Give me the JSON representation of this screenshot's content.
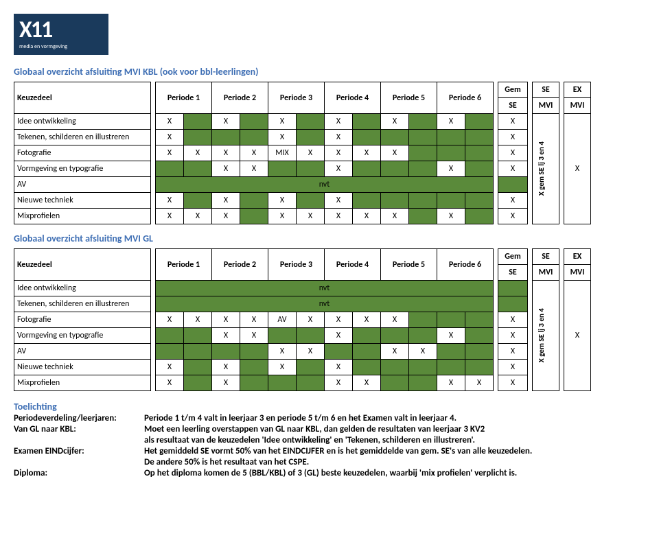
{
  "logo": {
    "main": "X11",
    "sub": "media en vormgeving"
  },
  "title1": "Globaal overzicht afsluiting MVI KBL (ook voor bbl-leerlingen)",
  "title2": "Globaal overzicht afsluiting MVI GL",
  "headers": {
    "keuzedeel": "Keuzedeel",
    "periods": [
      "Periode 1",
      "Periode 2",
      "Periode 3",
      "Periode 4",
      "Periode 5",
      "Periode 6"
    ],
    "gem_top": "Gem",
    "gem_bot": "SE",
    "se_top": "SE",
    "se_bot": "MVI",
    "ex_top": "EX",
    "ex_bot": "MVI",
    "vert": "X gem SE lj 3 en 4",
    "bigX": "X"
  },
  "nvt": "nvt",
  "table1": {
    "rows": [
      {
        "label": "Idee ontwikkeling",
        "cells": [
          "X",
          "",
          "X",
          "",
          "X",
          "",
          "X",
          "",
          "X",
          "",
          "X",
          "",
          "X"
        ]
      },
      {
        "label": "Tekenen, schilderen en illustreren",
        "cells": [
          "X",
          "",
          "",
          "",
          "X",
          "",
          "X",
          "",
          "",
          "",
          "",
          "",
          "X"
        ]
      },
      {
        "label": "Fotografie",
        "cells": [
          "X",
          "X",
          "X",
          "X",
          "MIX",
          "X",
          "X",
          "X",
          "X",
          "",
          "",
          "",
          "X"
        ]
      },
      {
        "label": "Vormgeving en typografie",
        "cells": [
          "",
          "",
          "X",
          "X",
          "",
          "",
          "X",
          "",
          "",
          "",
          "X",
          "",
          "X"
        ]
      },
      {
        "label": "AV",
        "nvt": true
      },
      {
        "label": "Nieuwe techniek",
        "cells": [
          "X",
          "",
          "X",
          "",
          "X",
          "",
          "X",
          "",
          "",
          "",
          "",
          "",
          "X"
        ]
      },
      {
        "label": "Mixprofielen",
        "cells": [
          "X",
          "X",
          "X",
          "",
          "X",
          "X",
          "X",
          "X",
          "X",
          "",
          "X",
          "",
          "X"
        ]
      }
    ]
  },
  "table2": {
    "rows": [
      {
        "label": "Idee ontwikkeling",
        "nvt": true
      },
      {
        "label": "Tekenen, schilderen en illustreren",
        "nvt": true
      },
      {
        "label": "Fotografie",
        "cells": [
          "X",
          "X",
          "X",
          "X",
          "AV",
          "X",
          "X",
          "X",
          "X",
          "",
          "",
          "",
          "X"
        ]
      },
      {
        "label": "Vormgeving en typografie",
        "cells": [
          "",
          "",
          "X",
          "X",
          "",
          "",
          "X",
          "",
          "",
          "",
          "X",
          "",
          "X"
        ]
      },
      {
        "label": "AV",
        "cells": [
          "",
          "",
          "",
          "",
          "X",
          "X",
          "",
          "",
          "X",
          "X",
          "",
          "",
          "X"
        ]
      },
      {
        "label": "Nieuwe techniek",
        "cells": [
          "X",
          "",
          "X",
          "",
          "X",
          "",
          "X",
          "",
          "",
          "",
          "",
          "",
          "X"
        ]
      },
      {
        "label": "Mixprofielen",
        "cells": [
          "X",
          "",
          "X",
          "",
          "",
          "",
          "X",
          "X",
          "",
          "",
          "X",
          "X",
          "X"
        ]
      }
    ]
  },
  "toelichting": {
    "title": "Toelichting",
    "items": [
      {
        "label": "Periodeverdeling/leerjaren:",
        "lines": [
          "Periode 1 t/m 4 valt in leerjaar 3 en periode 5 t/m 6 en het Examen valt in leerjaar 4."
        ]
      },
      {
        "label": "Van GL naar KBL:",
        "lines": [
          "Moet een leerling overstappen van GL naar KBL, dan gelden de resultaten van leerjaar 3 KV2",
          "als resultaat van de keuzedelen 'Idee ontwikkeling' en 'Tekenen, schilderen en illustreren'."
        ]
      },
      {
        "label": "Examen EINDcijfer:",
        "lines": [
          "Het gemiddeld SE vormt 50% van het EINDCIJFER en is het gemiddelde van gem. SE's van alle keuzedelen.",
          "De andere 50% is het resultaat van het CSPE."
        ]
      },
      {
        "label": "Diploma:",
        "lines": [
          "Op het diploma komen de 5 (BBL/KBL) of 3 (GL) beste keuzedelen, waarbij 'mix profielen' verplicht is."
        ]
      }
    ]
  },
  "colors": {
    "green": "#5a8a3a",
    "title": "#3f6fb4",
    "logo_bg": "#1a3a5c"
  }
}
